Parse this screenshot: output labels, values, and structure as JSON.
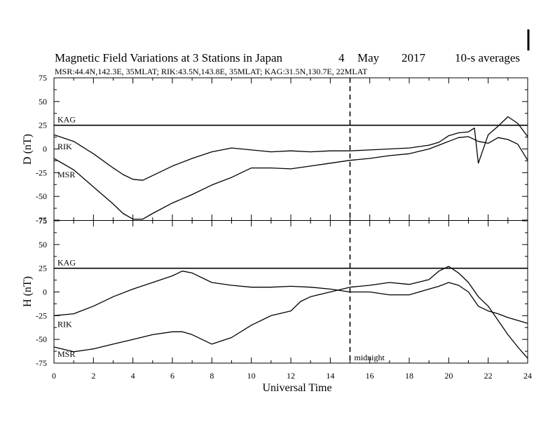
{
  "header": {
    "title": "Magnetic Field Variations at 3 Stations in Japan",
    "day": "4",
    "month": "May",
    "year": "2017",
    "averaging": "10-s averages",
    "stations": "MSR:44.4N,142.3E, 35MLAT;  RIK:43.5N,143.8E, 35MLAT;  KAG:31.5N,130.7E, 22MLAT"
  },
  "chart_data": [
    {
      "type": "line",
      "panel": "D",
      "ylabel": "D (nT)",
      "xlim": [
        0,
        24
      ],
      "ylim": [
        -75,
        75
      ],
      "yticks": [
        75,
        50,
        25,
        0,
        -25,
        -50,
        -75
      ],
      "series": [
        {
          "name": "KAG",
          "x": [
            0,
            24
          ],
          "y": [
            25,
            25
          ]
        },
        {
          "name": "RIK",
          "x": [
            0,
            1,
            2,
            3,
            3.5,
            4,
            4.5,
            5,
            6,
            7,
            8,
            8.5,
            9,
            10,
            11,
            12,
            13,
            14,
            15,
            16,
            17,
            18,
            19,
            19.5,
            20,
            20.5,
            21,
            21.3,
            21.5,
            22,
            22.5,
            23,
            23.5,
            24
          ],
          "y": [
            15,
            8,
            -5,
            -20,
            -27,
            -32,
            -33,
            -28,
            -18,
            -10,
            -3,
            -1,
            1,
            -1,
            -3,
            -2,
            -3,
            -2,
            -2,
            -1,
            0,
            1,
            4,
            7,
            14,
            17,
            18,
            22,
            -15,
            15,
            24,
            34,
            27,
            13
          ]
        },
        {
          "name": "MSR",
          "x": [
            0,
            1,
            2,
            3,
            3.5,
            4,
            4.5,
            5,
            6,
            7,
            8,
            9,
            10,
            11,
            12,
            13,
            14,
            15,
            16,
            17,
            18,
            19,
            19.5,
            20,
            20.5,
            21,
            21.5,
            22,
            22.5,
            23,
            23.5,
            24
          ],
          "y": [
            -10,
            -22,
            -40,
            -58,
            -68,
            -74,
            -74,
            -68,
            -57,
            -48,
            -38,
            -30,
            -20,
            -20,
            -21,
            -18,
            -15,
            -12,
            -10,
            -7,
            -5,
            0,
            4,
            8,
            12,
            13,
            8,
            6,
            12,
            10,
            5,
            -12
          ]
        }
      ],
      "labels": [
        "KAG",
        "RIK",
        "MSR"
      ]
    },
    {
      "type": "line",
      "panel": "H",
      "ylabel": "H (nT)",
      "xlabel": "Universal Time",
      "xlim": [
        0,
        24
      ],
      "xticks": [
        0,
        2,
        4,
        6,
        8,
        10,
        12,
        14,
        16,
        18,
        20,
        22,
        24
      ],
      "ylim": [
        -75,
        75
      ],
      "yticks": [
        75,
        50,
        25,
        0,
        -25,
        -50,
        -75
      ],
      "series": [
        {
          "name": "KAG",
          "x": [
            0,
            24
          ],
          "y": [
            25,
            25
          ]
        },
        {
          "name": "RIK",
          "x": [
            0,
            1,
            2,
            3,
            4,
            5,
            6,
            6.5,
            7,
            8,
            9,
            10,
            11,
            12,
            13,
            14,
            15,
            16,
            17,
            18,
            19,
            19.5,
            20,
            20.5,
            21,
            21.5,
            22,
            22.5,
            23,
            23.5,
            24
          ],
          "y": [
            -25,
            -23,
            -15,
            -5,
            3,
            10,
            17,
            22,
            20,
            10,
            7,
            5,
            5,
            6,
            5,
            3,
            0,
            0,
            -3,
            -3,
            3,
            6,
            10,
            7,
            0,
            -15,
            -20,
            -23,
            -27,
            -30,
            -33
          ]
        },
        {
          "name": "MSR",
          "x": [
            0,
            1,
            2,
            3,
            4,
            5,
            6,
            6.5,
            7,
            8,
            9,
            10,
            11,
            12,
            12.5,
            13,
            14,
            15,
            16,
            17,
            18,
            19,
            19.5,
            20,
            20.5,
            21,
            21.5,
            22,
            22.5,
            23,
            23.5,
            24
          ],
          "y": [
            -58,
            -63,
            -60,
            -55,
            -50,
            -45,
            -42,
            -42,
            -45,
            -55,
            -48,
            -35,
            -25,
            -20,
            -10,
            -5,
            0,
            5,
            7,
            10,
            8,
            13,
            22,
            27,
            20,
            10,
            -5,
            -15,
            -30,
            -45,
            -58,
            -70
          ]
        }
      ],
      "labels": [
        "KAG",
        "RIK",
        "MSR"
      ],
      "annotation": "midnight",
      "annotation_x": 15
    }
  ]
}
